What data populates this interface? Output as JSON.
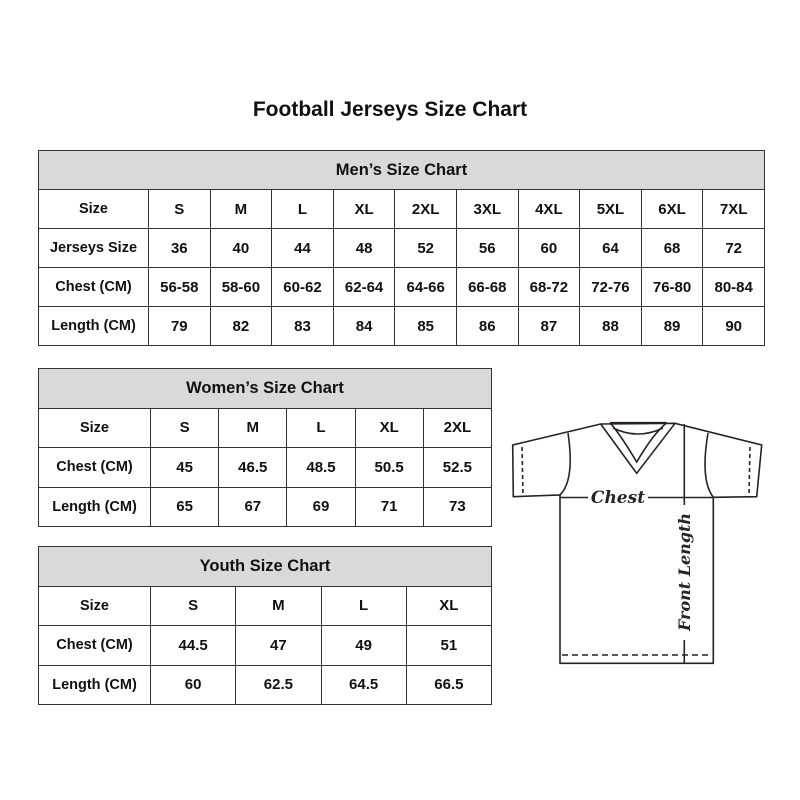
{
  "title": "Football Jerseys Size Chart",
  "men": {
    "caption": "Men’s Size Chart",
    "rows": [
      {
        "label": "Size",
        "values": [
          "S",
          "M",
          "L",
          "XL",
          "2XL",
          "3XL",
          "4XL",
          "5XL",
          "6XL",
          "7XL"
        ]
      },
      {
        "label": "Jerseys Size",
        "values": [
          "36",
          "40",
          "44",
          "48",
          "52",
          "56",
          "60",
          "64",
          "68",
          "72"
        ]
      },
      {
        "label": "Chest (CM)",
        "values": [
          "56-58",
          "58-60",
          "60-62",
          "62-64",
          "64-66",
          "66-68",
          "68-72",
          "72-76",
          "76-80",
          "80-84"
        ]
      },
      {
        "label": "Length (CM)",
        "values": [
          "79",
          "82",
          "83",
          "84",
          "85",
          "86",
          "87",
          "88",
          "89",
          "90"
        ]
      }
    ]
  },
  "women": {
    "caption": "Women’s Size Chart",
    "rows": [
      {
        "label": "Size",
        "values": [
          "S",
          "M",
          "L",
          "XL",
          "2XL"
        ]
      },
      {
        "label": "Chest (CM)",
        "values": [
          "45",
          "46.5",
          "48.5",
          "50.5",
          "52.5"
        ]
      },
      {
        "label": "Length (CM)",
        "values": [
          "65",
          "67",
          "69",
          "71",
          "73"
        ]
      }
    ]
  },
  "youth": {
    "caption": "Youth Size Chart",
    "rows": [
      {
        "label": "Size",
        "values": [
          "S",
          "M",
          "L",
          "XL"
        ]
      },
      {
        "label": "Chest (CM)",
        "values": [
          "44.5",
          "47",
          "49",
          "51"
        ]
      },
      {
        "label": "Length (CM)",
        "values": [
          "60",
          "62.5",
          "64.5",
          "66.5"
        ]
      }
    ]
  },
  "diagram": {
    "chest_label": "Chest",
    "length_label": "Front Length"
  },
  "colors": {
    "header_bg": "#d9d9d9",
    "line": "#2b2220"
  }
}
